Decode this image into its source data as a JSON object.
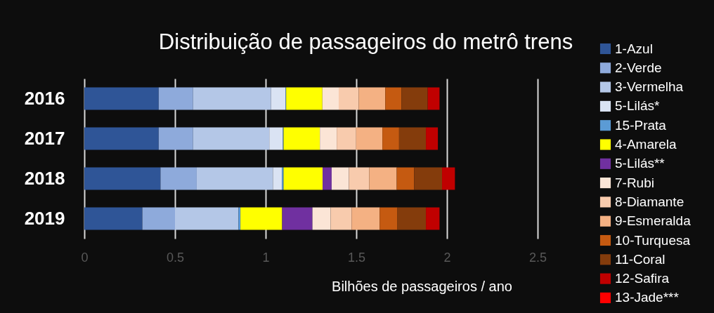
{
  "chart_data": {
    "type": "bar",
    "orientation": "horizontal",
    "stacked": true,
    "title": "Distribuição de passageiros do metrô trens",
    "xlabel": "Bilhões de passageiros / ano",
    "categories": [
      "2016",
      "2017",
      "2018",
      "2019"
    ],
    "xlim": [
      0,
      2.5
    ],
    "xticks": [
      0,
      0.5,
      1,
      1.5,
      2,
      2.5
    ],
    "grid": "x",
    "legend": "right",
    "series": [
      {
        "name": "1-Azul",
        "color": "#2f5597",
        "values": [
          0.41,
          0.41,
          0.42,
          0.32
        ]
      },
      {
        "name": "2-Verde",
        "color": "#8eaadb",
        "values": [
          0.19,
          0.19,
          0.2,
          0.18
        ]
      },
      {
        "name": "3-Vermelha",
        "color": "#b4c7e7",
        "values": [
          0.43,
          0.42,
          0.42,
          0.35
        ]
      },
      {
        "name": "5-Lilás*",
        "color": "#dae3f3",
        "values": [
          0.08,
          0.075,
          0.05,
          null
        ]
      },
      {
        "name": "15-Prata",
        "color": "#5b9bd5",
        "values": [
          0.003,
          0.004,
          0.009,
          0.011
        ]
      },
      {
        "name": "4-Amarela",
        "color": "#ffff00",
        "values": [
          0.2,
          0.2,
          0.215,
          0.23
        ]
      },
      {
        "name": "5-Lilás**",
        "color": "#7030a0",
        "values": [
          null,
          null,
          0.05,
          0.167
        ]
      },
      {
        "name": "7-Rubi",
        "color": "#fbe5d6",
        "values": [
          0.09,
          0.093,
          0.095,
          0.1
        ]
      },
      {
        "name": "8-Diamante",
        "color": "#f8cbad",
        "values": [
          0.11,
          0.106,
          0.112,
          0.116
        ]
      },
      {
        "name": "9-Esmeralda",
        "color": "#f4b183",
        "values": [
          0.147,
          0.146,
          0.152,
          0.155
        ]
      },
      {
        "name": "10-Turquesa",
        "color": "#c55a11",
        "values": [
          0.089,
          0.092,
          0.096,
          0.098
        ]
      },
      {
        "name": "11-Coral",
        "color": "#843c0c",
        "values": [
          0.145,
          0.148,
          0.154,
          0.157
        ]
      },
      {
        "name": "12-Safira",
        "color": "#c00000",
        "values": [
          0.065,
          0.066,
          0.071,
          0.075
        ]
      },
      {
        "name": "13-Jade***",
        "color": "#ff0000",
        "values": [
          null,
          null,
          null,
          null
        ]
      }
    ]
  }
}
